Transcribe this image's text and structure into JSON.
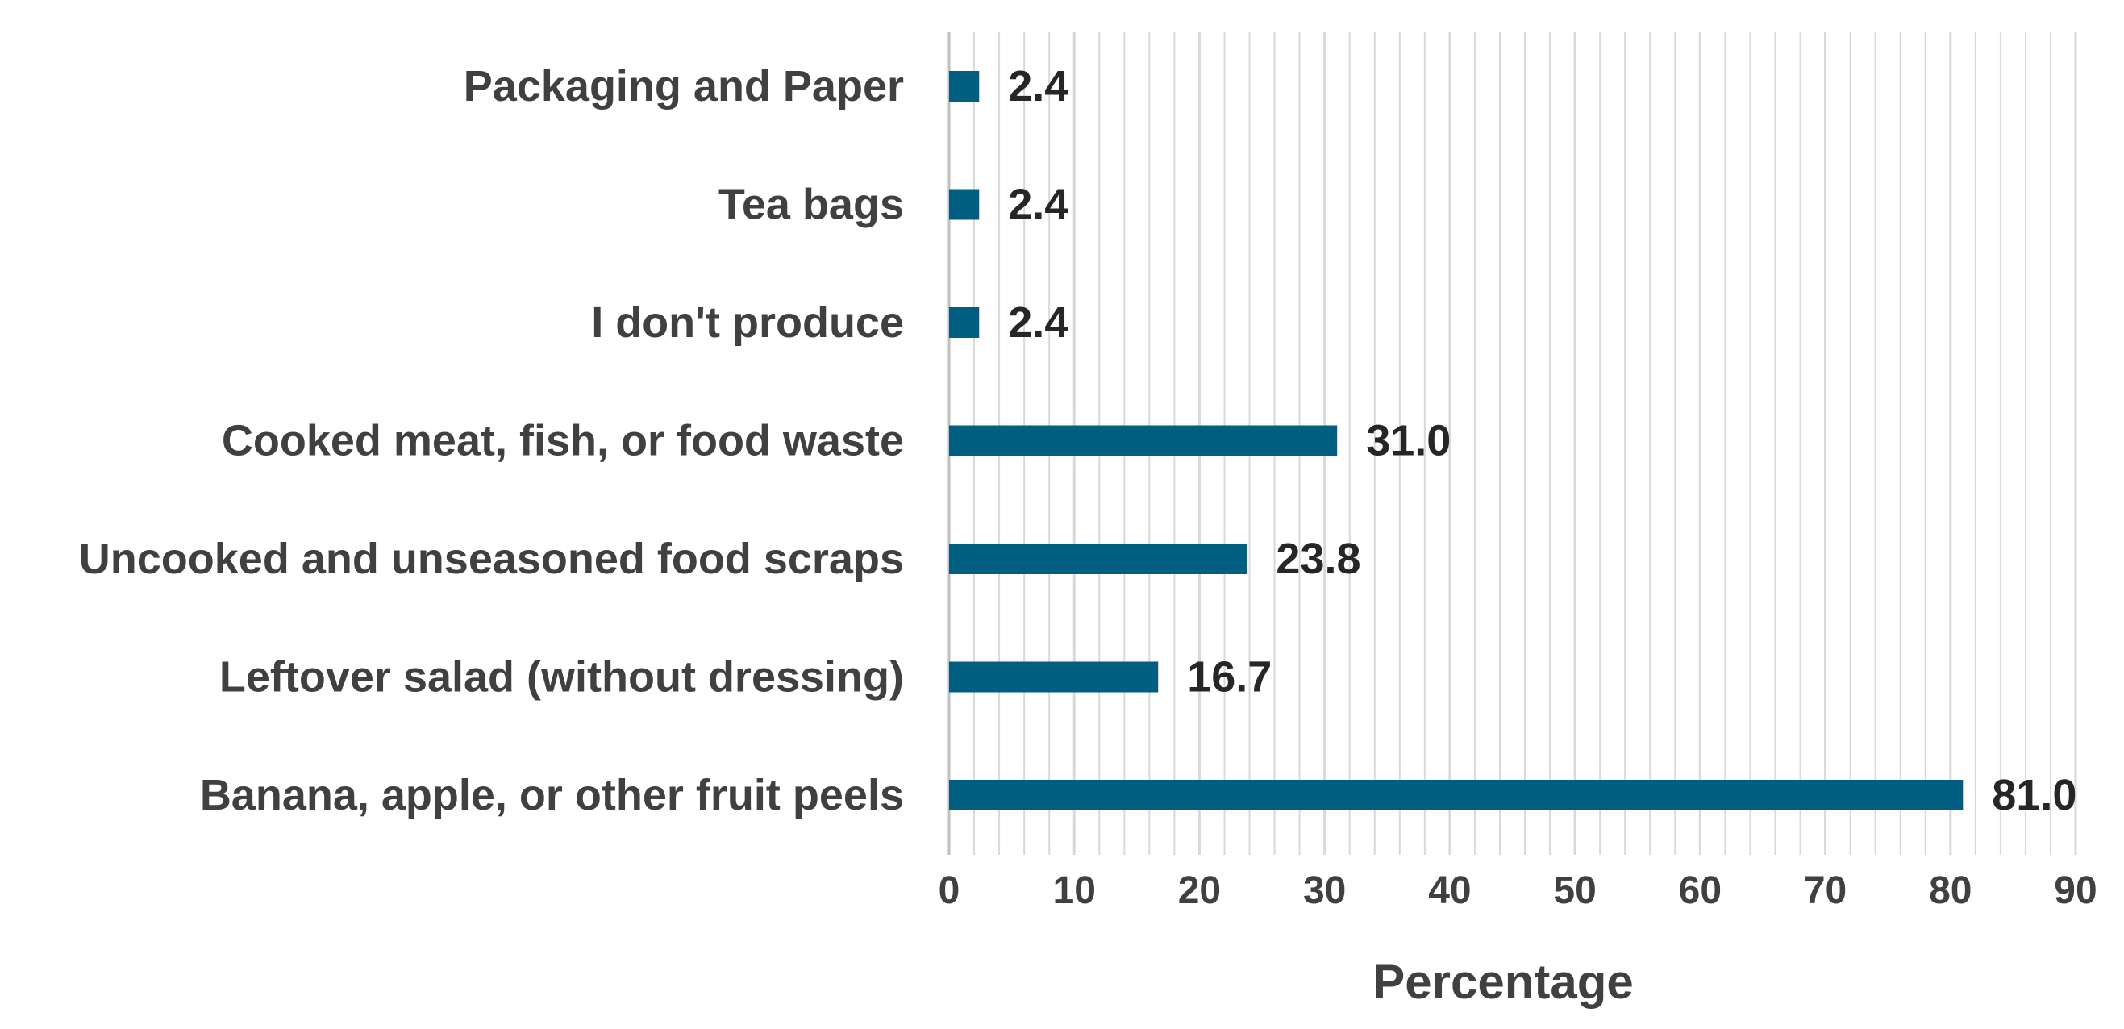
{
  "chart_data": {
    "type": "bar",
    "orientation": "horizontal",
    "title": "",
    "xlabel": "Percentage",
    "ylabel": "",
    "xlim": [
      0,
      90
    ],
    "major_ticks": [
      0,
      10,
      20,
      30,
      40,
      50,
      60,
      70,
      80,
      90
    ],
    "minor_tick_step": 2,
    "grid": true,
    "categories": [
      "Packaging and Paper",
      "Tea bags",
      "I don't produce",
      "Cooked meat, fish, or food waste",
      "Uncooked and unseasoned food scraps",
      "Leftover salad (without dressing)",
      "Banana, apple, or other fruit peels"
    ],
    "values": [
      2.4,
      2.4,
      2.4,
      31.0,
      23.8,
      16.7,
      81.0
    ],
    "value_labels": [
      "2.4",
      "2.4",
      "2.4",
      "31.0",
      "23.8",
      "16.7",
      "81.0"
    ],
    "colors": {
      "bar": "#005E80",
      "text": "#404040",
      "value_text": "#262626",
      "grid": "#D9D9D9",
      "axis": "#BFBFBF"
    }
  }
}
